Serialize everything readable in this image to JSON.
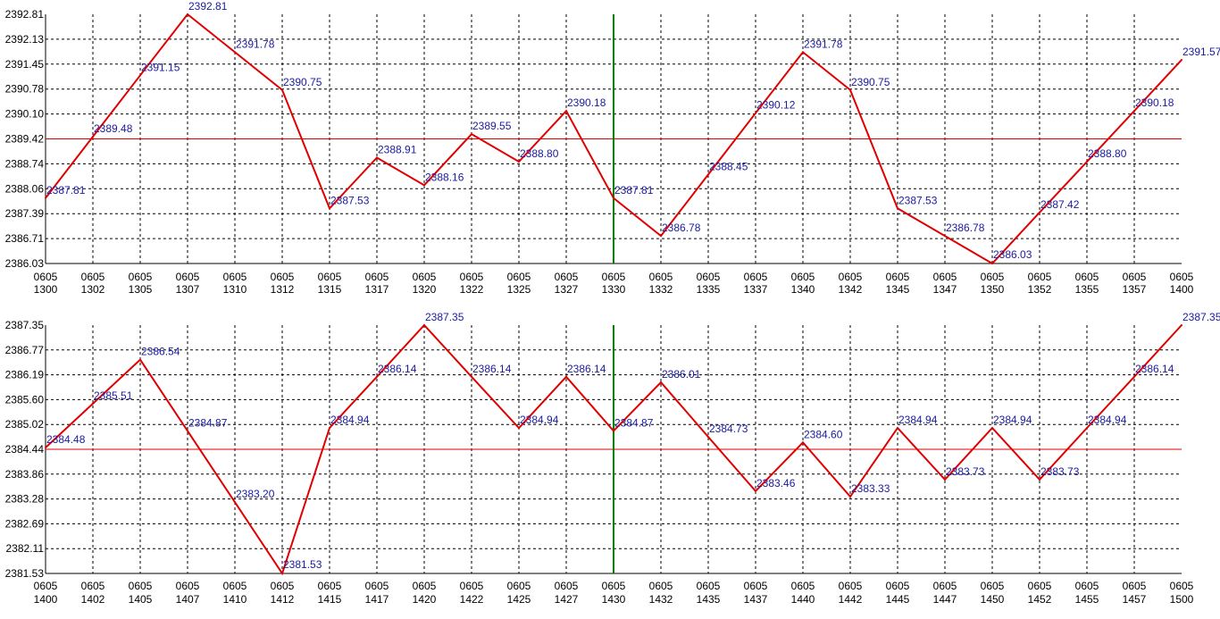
{
  "colors": {
    "background": "#ffffff",
    "grid": "#000000",
    "axis": "#000000",
    "series_line": "#e00000",
    "reference_line": "#e00000",
    "marker_line": "#008000",
    "data_label": "#1a1aa0"
  },
  "chart_data": [
    {
      "type": "line",
      "grid": true,
      "ylim": [
        2386.03,
        2392.81
      ],
      "y_ticks": [
        "2392.81",
        "2392.13",
        "2391.45",
        "2390.78",
        "2390.10",
        "2389.42",
        "2388.74",
        "2388.06",
        "2387.39",
        "2386.71",
        "2386.03"
      ],
      "reference_value": 2389.42,
      "marker_index": 12,
      "categories": [
        "0605 1300",
        "0605 1302",
        "0605 1305",
        "0605 1307",
        "0605 1310",
        "0605 1312",
        "0605 1315",
        "0605 1317",
        "0605 1320",
        "0605 1322",
        "0605 1325",
        "0605 1327",
        "0605 1330",
        "0605 1332",
        "0605 1335",
        "0605 1337",
        "0605 1340",
        "0605 1342",
        "0605 1345",
        "0605 1347",
        "0605 1350",
        "0605 1352",
        "0605 1355",
        "0605 1357",
        "0605 1400"
      ],
      "values": [
        2387.81,
        2389.48,
        2391.15,
        2392.81,
        2391.78,
        2390.75,
        2387.53,
        2388.91,
        2388.16,
        2389.55,
        2388.8,
        2390.18,
        2387.81,
        2386.78,
        2388.45,
        2390.12,
        2391.78,
        2390.75,
        2387.53,
        2386.78,
        2386.03,
        2387.42,
        2388.8,
        2390.18,
        2391.57
      ],
      "value_labels": [
        "2387.81",
        "2389.48",
        "2391.15",
        "2392.81",
        "2391.78",
        "2390.75",
        "2387.53",
        "2388.91",
        "2388.16",
        "2389.55",
        "2388.80",
        "2390.18",
        "2387.81",
        "2386.78",
        "2388.45",
        "2390.12",
        "2391.78",
        "2390.75",
        "2387.53",
        "2386.78",
        "2386.03",
        "2387.42",
        "2388.80",
        "2390.18",
        "2391.57"
      ]
    },
    {
      "type": "line",
      "grid": true,
      "ylim": [
        2381.53,
        2387.35
      ],
      "y_ticks": [
        "2387.35",
        "2386.77",
        "2386.19",
        "2385.60",
        "2385.02",
        "2384.44",
        "2383.86",
        "2383.28",
        "2382.69",
        "2382.11",
        "2381.53"
      ],
      "reference_value": 2384.44,
      "marker_index": 12,
      "categories": [
        "0605 1400",
        "0605 1402",
        "0605 1405",
        "0605 1407",
        "0605 1410",
        "0605 1412",
        "0605 1415",
        "0605 1417",
        "0605 1420",
        "0605 1422",
        "0605 1425",
        "0605 1427",
        "0605 1430",
        "0605 1432",
        "0605 1435",
        "0605 1437",
        "0605 1440",
        "0605 1442",
        "0605 1445",
        "0605 1447",
        "0605 1450",
        "0605 1452",
        "0605 1455",
        "0605 1457",
        "0605 1500"
      ],
      "values": [
        2384.48,
        2385.51,
        2386.54,
        2384.87,
        2383.2,
        2381.53,
        2384.94,
        2386.14,
        2387.35,
        2386.14,
        2384.94,
        2386.14,
        2384.87,
        2386.01,
        2384.73,
        2383.46,
        2384.6,
        2383.33,
        2384.94,
        2383.73,
        2384.94,
        2383.73,
        2384.94,
        2386.14,
        2387.35
      ],
      "value_labels": [
        "2384.48",
        "2385.51",
        "2386.54",
        "2384.87",
        "2383.20",
        "2381.53",
        "2384.94",
        "2386.14",
        "2387.35",
        "2386.14",
        "2384.94",
        "2386.14",
        "2384.87",
        "2386.01",
        "2384.73",
        "2383.46",
        "2384.60",
        "2383.33",
        "2384.94",
        "2383.73",
        "2384.94",
        "2383.73",
        "2384.94",
        "2386.14",
        "2387.35"
      ]
    }
  ]
}
